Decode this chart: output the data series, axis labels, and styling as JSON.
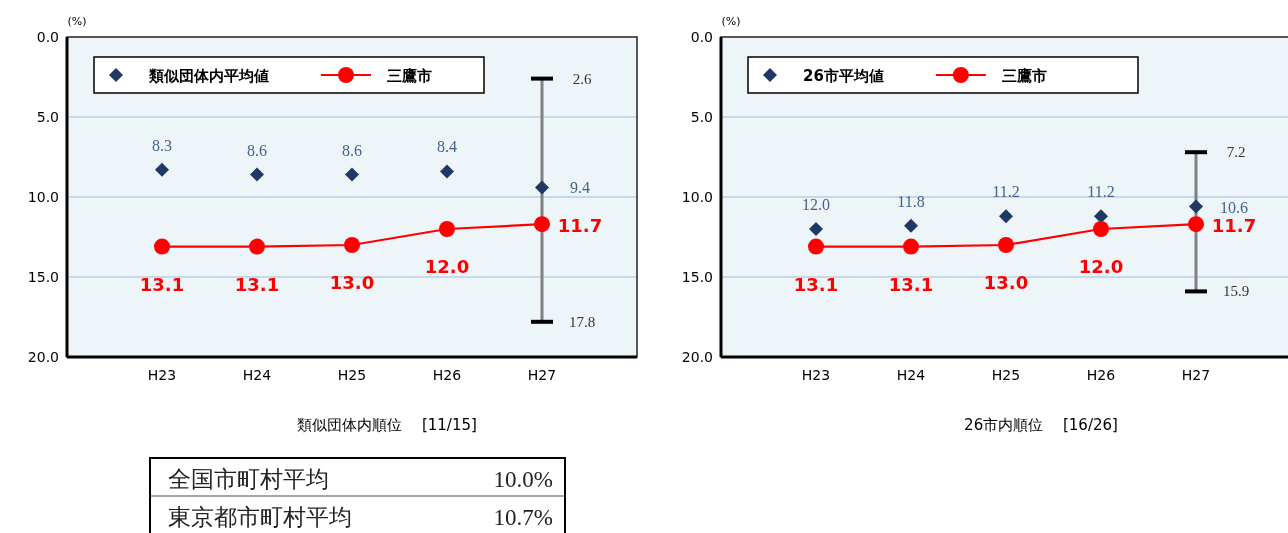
{
  "chart_data": [
    {
      "type": "line",
      "ylabel": "(%)",
      "xlabel": "類似団体内順位　 [11/15]",
      "categories": [
        "H23",
        "H24",
        "H25",
        "H26",
        "H27"
      ],
      "ylim": [
        20,
        0
      ],
      "yticks": [
        {
          "value": 0,
          "label": "0.0"
        },
        {
          "value": 5,
          "label": "5.0"
        },
        {
          "value": 10,
          "label": "10.0"
        },
        {
          "value": 15,
          "label": "15.0"
        },
        {
          "value": 20,
          "label": "20.0"
        }
      ],
      "grid": "y",
      "legend": "top left",
      "series": [
        {
          "name": "類似団体内平均値",
          "type": "scatter",
          "marker": "diamond",
          "color": "#1f3864",
          "values": [
            8.3,
            8.6,
            8.6,
            8.4,
            9.4
          ],
          "value_labels": [
            "8.3",
            "8.6",
            "8.6",
            "8.4",
            "9.4"
          ],
          "errors": [
            null,
            null,
            null,
            null,
            [
              2.6,
              17.8
            ]
          ]
        },
        {
          "name": "三鷹市",
          "type": "line",
          "marker": "circle",
          "color": "#ff0000",
          "values": [
            13.1,
            13.1,
            13.0,
            12.0,
            11.7
          ],
          "value_labels": [
            "13.1",
            "13.1",
            "13.0",
            "12.0",
            "11.7"
          ]
        }
      ],
      "annotations": [
        {
          "text": "2.6",
          "x": "H27",
          "y": 2.6
        },
        {
          "text": "17.8",
          "x": "H27",
          "y": 17.8
        },
        "全国市町村平均 10.0%",
        "東京都市町村平均 10.7%"
      ]
    },
    {
      "type": "line",
      "ylabel": "(%)",
      "xlabel": "26市内順位　 [16/26]",
      "categories": [
        "H23",
        "H24",
        "H25",
        "H26",
        "H27"
      ],
      "ylim": [
        20,
        0
      ],
      "yticks": [
        {
          "value": 0,
          "label": "0.0"
        },
        {
          "value": 5,
          "label": "5.0"
        },
        {
          "value": 10,
          "label": "10.0"
        },
        {
          "value": 15,
          "label": "15.0"
        },
        {
          "value": 20,
          "label": "20.0"
        }
      ],
      "grid": "y",
      "legend": "top left",
      "annotations": [
        {
          "text": "7.2",
          "x": "H27",
          "y": 7.2
        },
        {
          "text": "15.9",
          "x": "H27",
          "y": 15.9
        }
      ],
      "series": [
        {
          "name": "26市平均値",
          "type": "scatter",
          "marker": "diamond",
          "color": "#1f3864",
          "values": [
            12.0,
            11.8,
            11.2,
            11.2,
            10.6
          ],
          "value_labels": [
            "12.0",
            "11.8",
            "11.2",
            "11.2",
            "10.6"
          ],
          "errors": [
            null,
            null,
            null,
            null,
            [
              7.2,
              15.9
            ]
          ]
        },
        {
          "name": "三鷹市",
          "type": "line",
          "marker": "circle",
          "color": "#ff0000",
          "values": [
            13.1,
            13.1,
            13.0,
            12.0,
            11.7
          ],
          "value_labels": [
            "13.1",
            "13.1",
            "13.0",
            "12.0",
            "11.7"
          ]
        }
      ]
    }
  ]
}
